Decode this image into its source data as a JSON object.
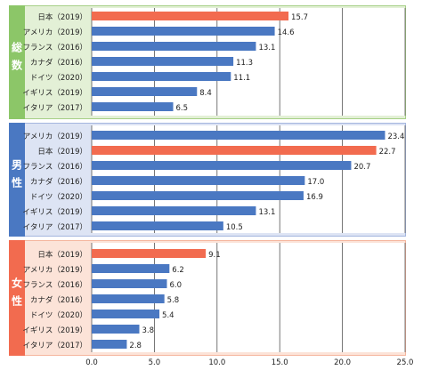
{
  "colors": {
    "highlight_bar": "#f26b4f",
    "normal_bar": "#4a78c2",
    "panel1_bg": "#e3f0d6",
    "panel1_border": "#a6cf86",
    "panel1_tab": "#8cc668",
    "panel2_bg": "#dde4f4",
    "panel2_border": "#a4b6de",
    "panel2_tab": "#4a78c2",
    "panel3_bg": "#fce3d8",
    "panel3_border": "#f5b59d",
    "panel3_tab": "#f26b4f"
  },
  "chart_data": {
    "type": "bar",
    "orientation": "horizontal",
    "xlim": [
      0,
      25
    ],
    "x_ticks": [
      "0.0",
      "5.0",
      "10.0",
      "15.0",
      "20.0",
      "25.0"
    ],
    "grid": true,
    "panels": [
      {
        "label": "総数",
        "categories": [
          "日本（2019）",
          "アメリカ（2019）",
          "フランス（2016）",
          "カナダ（2016）",
          "ドイツ（2020）",
          "イギリス（2019）",
          "イタリア（2017）"
        ],
        "values": [
          15.7,
          14.6,
          13.1,
          11.3,
          11.1,
          8.4,
          6.5
        ],
        "value_labels": [
          "15.7",
          "14.6",
          "13.1",
          "11.3",
          "11.1",
          "8.4",
          "6.5"
        ],
        "highlight": [
          true,
          false,
          false,
          false,
          false,
          false,
          false
        ]
      },
      {
        "label": "男性",
        "categories": [
          "アメリカ（2019）",
          "日本（2019）",
          "フランス（2016）",
          "カナダ（2016）",
          "ドイツ（2020）",
          "イギリス（2019）",
          "イタリア（2017）"
        ],
        "values": [
          23.4,
          22.7,
          20.7,
          17.0,
          16.9,
          13.1,
          10.5
        ],
        "value_labels": [
          "23.4",
          "22.7",
          "20.7",
          "17.0",
          "16.9",
          "13.1",
          "10.5"
        ],
        "highlight": [
          false,
          true,
          false,
          false,
          false,
          false,
          false
        ]
      },
      {
        "label": "女性",
        "categories": [
          "日本（2019）",
          "アメリカ（2019）",
          "フランス（2016）",
          "カナダ（2016）",
          "ドイツ（2020）",
          "イギリス（2019）",
          "イタリア（2017）"
        ],
        "values": [
          9.1,
          6.2,
          6.0,
          5.8,
          5.4,
          3.8,
          2.8
        ],
        "value_labels": [
          "9.1",
          "6.2",
          "6.0",
          "5.8",
          "5.4",
          "3.8",
          "2.8"
        ],
        "highlight": [
          true,
          false,
          false,
          false,
          false,
          false,
          false
        ]
      }
    ]
  }
}
